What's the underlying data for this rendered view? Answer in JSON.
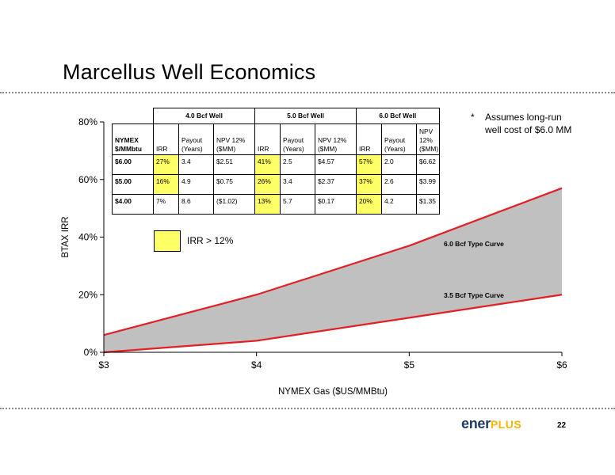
{
  "slide": {
    "title": "Marcellus Well Economics",
    "page_number": "22",
    "logo_text_a": "ener",
    "logo_text_b": "PLUS",
    "note_star": "*",
    "note_line1": "Assumes long-run",
    "note_line2": "well cost of $6.0 MM",
    "legend_label": "IRR > 12%",
    "highlight_color": "#ffff66"
  },
  "table": {
    "group_headers": [
      "4.0 Bcf Well",
      "5.0 Bcf Well",
      "6.0 Bcf Well"
    ],
    "row_header_line1": "NYMEX",
    "row_header_line2": "$/MMbtu",
    "sub_headers": [
      {
        "l1": "",
        "l2": "IRR"
      },
      {
        "l1": "Payout",
        "l2": "(Years)"
      },
      {
        "l1": "NPV 12%",
        "l2": "($MM)"
      }
    ],
    "rows": [
      {
        "price": "$6.00",
        "cells": [
          "27%",
          "3.4",
          "$2.51",
          "41%",
          "2.5",
          "$4.57",
          "57%",
          "2.0",
          "$6.62"
        ],
        "hl": [
          true,
          false,
          false,
          true,
          false,
          false,
          true,
          false,
          false
        ]
      },
      {
        "price": "$5.00",
        "cells": [
          "16%",
          "4.9",
          "$0.75",
          "26%",
          "3.4",
          "$2.37",
          "37%",
          "2.6",
          "$3.99"
        ],
        "hl": [
          true,
          false,
          false,
          true,
          false,
          false,
          true,
          false,
          false
        ]
      },
      {
        "price": "$4.00",
        "cells": [
          "7%",
          "8.6",
          "($1.02)",
          "13%",
          "5.7",
          "$0.17",
          "20%",
          "4.2",
          "$1.35"
        ],
        "hl": [
          false,
          false,
          false,
          true,
          false,
          false,
          true,
          false,
          false
        ]
      }
    ]
  },
  "chart_data": {
    "type": "area",
    "xlabel": "NYMEX Gas ($US/MMBtu)",
    "ylabel": "BTAX IRR",
    "x": [
      3,
      4,
      5,
      6
    ],
    "x_tick_labels": [
      "$3",
      "$4",
      "$5",
      "$6"
    ],
    "y_ticks": [
      0,
      20,
      40,
      60,
      80
    ],
    "y_tick_labels": [
      "0%",
      "20%",
      "40%",
      "60%",
      "80%"
    ],
    "xlim": [
      3,
      6
    ],
    "ylim": [
      0,
      80
    ],
    "series": [
      {
        "name": "6.0 Bcf Type Curve",
        "values": [
          6,
          20,
          37,
          57
        ]
      },
      {
        "name": "3.5 Bcf Type Curve",
        "values": [
          0,
          4,
          12,
          20
        ]
      }
    ],
    "fill_between": true,
    "line_color": "#e31e24",
    "fill_color": "#c0c0c0",
    "grid": false
  }
}
